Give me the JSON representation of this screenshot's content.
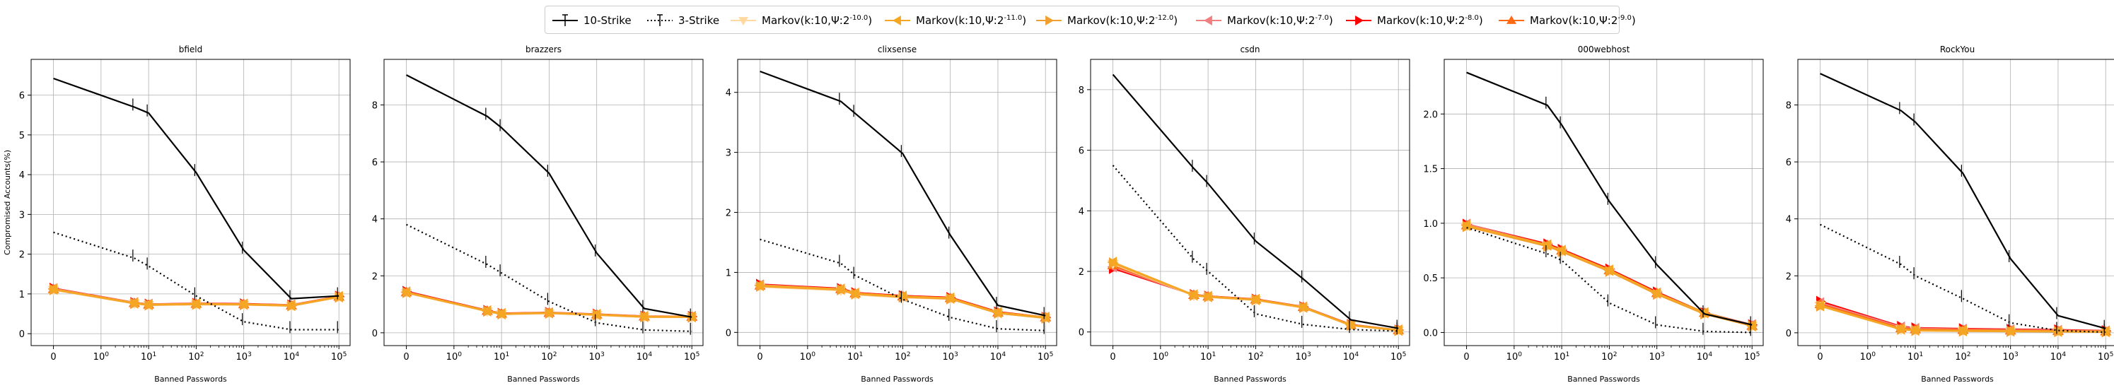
{
  "legend": {
    "items": [
      {
        "label": "10-Strike",
        "color": "#000000",
        "style": "solid",
        "marker": "errbar"
      },
      {
        "label": "3-Strike",
        "color": "#000000",
        "style": "dotted",
        "marker": "errbar"
      },
      {
        "label": "Markov(k:10,Ψ:2^{-10.0})",
        "color": "#ffd9a0",
        "style": "solid",
        "marker": "tri_down"
      },
      {
        "label": "Markov(k:10,Ψ:2^{-11.0})",
        "color": "#f5a623",
        "style": "solid",
        "marker": "tri_left"
      },
      {
        "label": "Markov(k:10,Ψ:2^{-12.0})",
        "color": "#f0a030",
        "style": "solid",
        "marker": "tri_right"
      },
      {
        "label": "Markov(k:10,Ψ:2^{-7.0})",
        "color": "#f08080",
        "style": "solid",
        "marker": "tri_left"
      },
      {
        "label": "Markov(k:10,Ψ:2^{-8.0})",
        "color": "#ff0000",
        "style": "solid",
        "marker": "tri_right"
      },
      {
        "label": "Markov(k:10,Ψ:2^{-9.0})",
        "color": "#ff6a13",
        "style": "solid",
        "marker": "tri_up"
      }
    ]
  },
  "chart_data": [
    {
      "type": "line",
      "title": "bfield",
      "xlabel": "Banned Passwords",
      "ylabel": "Compromised Accounts(%)",
      "x": [
        0,
        5,
        10,
        100,
        1000,
        10000,
        100000
      ],
      "ylim": [
        -0.3,
        6.9
      ],
      "yticks": [
        0,
        1,
        2,
        3,
        4,
        5,
        6
      ],
      "series": [
        {
          "name": "10-Strike",
          "values": [
            6.42,
            5.7,
            5.55,
            4.05,
            2.1,
            0.88,
            0.95
          ]
        },
        {
          "name": "3-Strike",
          "values": [
            2.55,
            1.9,
            1.7,
            0.95,
            0.3,
            0.1,
            0.1
          ]
        },
        {
          "name": "Markov(k:10,Ψ:2^{-10.0})",
          "values": [
            1.1,
            0.76,
            0.72,
            0.73,
            0.73,
            0.7,
            0.92
          ]
        },
        {
          "name": "Markov(k:10,Ψ:2^{-11.0})",
          "values": [
            1.12,
            0.77,
            0.73,
            0.75,
            0.74,
            0.71,
            0.93
          ]
        },
        {
          "name": "Markov(k:10,Ψ:2^{-12.0})",
          "values": [
            1.11,
            0.76,
            0.72,
            0.74,
            0.73,
            0.7,
            0.92
          ]
        },
        {
          "name": "Markov(k:10,Ψ:2^{-7.0})",
          "values": [
            1.13,
            0.78,
            0.74,
            0.75,
            0.74,
            0.72,
            0.93
          ]
        },
        {
          "name": "Markov(k:10,Ψ:2^{-8.0})",
          "values": [
            1.14,
            0.78,
            0.74,
            0.76,
            0.75,
            0.72,
            0.94
          ]
        },
        {
          "name": "Markov(k:10,Ψ:2^{-9.0})",
          "values": [
            1.12,
            0.77,
            0.73,
            0.75,
            0.74,
            0.71,
            0.93
          ]
        }
      ]
    },
    {
      "type": "line",
      "title": "brazzers",
      "xlabel": "Banned Passwords",
      "ylabel": "",
      "x": [
        0,
        5,
        10,
        100,
        1000,
        10000,
        100000
      ],
      "ylim": [
        -0.45,
        9.6
      ],
      "yticks": [
        0,
        2,
        4,
        6,
        8
      ],
      "series": [
        {
          "name": "10-Strike",
          "values": [
            9.05,
            7.6,
            7.2,
            5.6,
            2.8,
            0.85,
            0.55
          ]
        },
        {
          "name": "3-Strike",
          "values": [
            3.8,
            2.4,
            2.1,
            1.1,
            0.35,
            0.1,
            0.05
          ]
        },
        {
          "name": "Markov(k:10,Ψ:2^{-10.0})",
          "values": [
            1.4,
            0.75,
            0.65,
            0.68,
            0.62,
            0.55,
            0.55
          ]
        },
        {
          "name": "Markov(k:10,Ψ:2^{-11.0})",
          "values": [
            1.42,
            0.77,
            0.67,
            0.7,
            0.64,
            0.57,
            0.56
          ]
        },
        {
          "name": "Markov(k:10,Ψ:2^{-12.0})",
          "values": [
            1.41,
            0.76,
            0.66,
            0.69,
            0.63,
            0.56,
            0.55
          ]
        },
        {
          "name": "Markov(k:10,Ψ:2^{-7.0})",
          "values": [
            1.43,
            0.77,
            0.67,
            0.7,
            0.64,
            0.57,
            0.57
          ]
        },
        {
          "name": "Markov(k:10,Ψ:2^{-8.0})",
          "values": [
            1.45,
            0.78,
            0.68,
            0.71,
            0.65,
            0.58,
            0.57
          ]
        },
        {
          "name": "Markov(k:10,Ψ:2^{-9.0})",
          "values": [
            1.42,
            0.77,
            0.67,
            0.7,
            0.64,
            0.57,
            0.56
          ]
        }
      ]
    },
    {
      "type": "line",
      "title": "clixsense",
      "xlabel": "Banned Passwords",
      "ylabel": "",
      "x": [
        0,
        5,
        10,
        100,
        1000,
        10000,
        100000
      ],
      "ylim": [
        -0.22,
        4.55
      ],
      "yticks": [
        0,
        1,
        2,
        3,
        4
      ],
      "series": [
        {
          "name": "10-Strike",
          "values": [
            4.35,
            3.85,
            3.65,
            2.98,
            1.62,
            0.45,
            0.28
          ]
        },
        {
          "name": "3-Strike",
          "values": [
            1.55,
            1.15,
            0.95,
            0.55,
            0.25,
            0.06,
            0.03
          ]
        },
        {
          "name": "Markov(k:10,Ψ:2^{-10.0})",
          "values": [
            0.76,
            0.7,
            0.63,
            0.58,
            0.56,
            0.32,
            0.24
          ]
        },
        {
          "name": "Markov(k:10,Ψ:2^{-11.0})",
          "values": [
            0.78,
            0.72,
            0.65,
            0.6,
            0.57,
            0.33,
            0.25
          ]
        },
        {
          "name": "Markov(k:10,Ψ:2^{-12.0})",
          "values": [
            0.77,
            0.71,
            0.64,
            0.59,
            0.56,
            0.32,
            0.24
          ]
        },
        {
          "name": "Markov(k:10,Ψ:2^{-7.0})",
          "values": [
            0.79,
            0.72,
            0.65,
            0.6,
            0.57,
            0.33,
            0.25
          ]
        },
        {
          "name": "Markov(k:10,Ψ:2^{-8.0})",
          "values": [
            0.8,
            0.73,
            0.66,
            0.61,
            0.58,
            0.34,
            0.25
          ]
        },
        {
          "name": "Markov(k:10,Ψ:2^{-9.0})",
          "values": [
            0.78,
            0.72,
            0.65,
            0.6,
            0.57,
            0.33,
            0.25
          ]
        }
      ]
    },
    {
      "type": "line",
      "title": "csdn",
      "xlabel": "Banned Passwords",
      "ylabel": "",
      "x": [
        0,
        5,
        10,
        100,
        1000,
        10000,
        100000
      ],
      "ylim": [
        -0.45,
        9.0
      ],
      "yticks": [
        0,
        2,
        4,
        6,
        8
      ],
      "series": [
        {
          "name": "10-Strike",
          "values": [
            8.5,
            5.4,
            4.9,
            3.0,
            1.75,
            0.4,
            0.12
          ]
        },
        {
          "name": "3-Strike",
          "values": [
            5.5,
            2.4,
            2.0,
            0.6,
            0.25,
            0.08,
            0.03
          ]
        },
        {
          "name": "Markov(k:10,Ψ:2^{-10.0})",
          "values": [
            2.25,
            1.2,
            1.15,
            1.05,
            0.8,
            0.22,
            0.05
          ]
        },
        {
          "name": "Markov(k:10,Ψ:2^{-11.0})",
          "values": [
            2.3,
            1.22,
            1.17,
            1.07,
            0.82,
            0.23,
            0.06
          ]
        },
        {
          "name": "Markov(k:10,Ψ:2^{-12.0})",
          "values": [
            2.28,
            1.21,
            1.16,
            1.06,
            0.81,
            0.22,
            0.05
          ]
        },
        {
          "name": "Markov(k:10,Ψ:2^{-7.0})",
          "values": [
            2.15,
            1.22,
            1.17,
            1.07,
            0.82,
            0.23,
            0.06
          ]
        },
        {
          "name": "Markov(k:10,Ψ:2^{-8.0})",
          "values": [
            2.1,
            1.23,
            1.18,
            1.08,
            0.83,
            0.24,
            0.06
          ]
        },
        {
          "name": "Markov(k:10,Ψ:2^{-9.0})",
          "values": [
            2.2,
            1.22,
            1.17,
            1.07,
            0.82,
            0.23,
            0.06
          ]
        }
      ]
    },
    {
      "type": "line",
      "title": "000webhost",
      "xlabel": "Banned Passwords",
      "ylabel": "",
      "x": [
        0,
        5,
        10,
        100,
        1000,
        10000,
        100000
      ],
      "ylim": [
        -0.12,
        2.5
      ],
      "yticks": [
        0.0,
        0.5,
        1.0,
        1.5,
        2.0
      ],
      "series": [
        {
          "name": "10-Strike",
          "values": [
            2.38,
            2.08,
            1.9,
            1.2,
            0.62,
            0.17,
            0.07
          ]
        },
        {
          "name": "3-Strike",
          "values": [
            0.96,
            0.72,
            0.66,
            0.27,
            0.07,
            0.01,
            0.0
          ]
        },
        {
          "name": "Markov(k:10,Ψ:2^{-10.0})",
          "values": [
            0.97,
            0.79,
            0.74,
            0.56,
            0.35,
            0.17,
            0.06
          ]
        },
        {
          "name": "Markov(k:10,Ψ:2^{-11.0})",
          "values": [
            0.98,
            0.8,
            0.75,
            0.57,
            0.36,
            0.18,
            0.06
          ]
        },
        {
          "name": "Markov(k:10,Ψ:2^{-12.0})",
          "values": [
            0.97,
            0.79,
            0.74,
            0.56,
            0.35,
            0.17,
            0.06
          ]
        },
        {
          "name": "Markov(k:10,Ψ:2^{-7.0})",
          "values": [
            0.99,
            0.8,
            0.75,
            0.57,
            0.36,
            0.18,
            0.07
          ]
        },
        {
          "name": "Markov(k:10,Ψ:2^{-8.0})",
          "values": [
            0.99,
            0.81,
            0.76,
            0.58,
            0.37,
            0.18,
            0.07
          ]
        },
        {
          "name": "Markov(k:10,Ψ:2^{-9.0})",
          "values": [
            0.98,
            0.8,
            0.75,
            0.57,
            0.36,
            0.18,
            0.06
          ]
        }
      ]
    },
    {
      "type": "line",
      "title": "RockYou",
      "xlabel": "Banned Passwords",
      "ylabel": "",
      "x": [
        0,
        5,
        10,
        100,
        1000,
        10000,
        100000
      ],
      "ylim": [
        -0.45,
        9.6
      ],
      "yticks": [
        0,
        2,
        4,
        6,
        8
      ],
      "series": [
        {
          "name": "10-Strike",
          "values": [
            9.1,
            7.8,
            7.4,
            5.6,
            2.6,
            0.6,
            0.15
          ]
        },
        {
          "name": "3-Strike",
          "values": [
            3.8,
            2.4,
            2.0,
            1.2,
            0.35,
            0.08,
            0.02
          ]
        },
        {
          "name": "Markov(k:10,Ψ:2^{-10.0})",
          "values": [
            0.95,
            0.12,
            0.08,
            0.06,
            0.05,
            0.04,
            0.03
          ]
        },
        {
          "name": "Markov(k:10,Ψ:2^{-11.0})",
          "values": [
            0.95,
            0.13,
            0.09,
            0.07,
            0.06,
            0.05,
            0.04
          ]
        },
        {
          "name": "Markov(k:10,Ψ:2^{-12.0})",
          "values": [
            0.94,
            0.12,
            0.08,
            0.06,
            0.05,
            0.04,
            0.03
          ]
        },
        {
          "name": "Markov(k:10,Ψ:2^{-7.0})",
          "values": [
            1.05,
            0.2,
            0.15,
            0.12,
            0.1,
            0.08,
            0.06
          ]
        },
        {
          "name": "Markov(k:10,Ψ:2^{-8.0})",
          "values": [
            1.1,
            0.22,
            0.17,
            0.14,
            0.12,
            0.1,
            0.07
          ]
        },
        {
          "name": "Markov(k:10,Ψ:2^{-9.0})",
          "values": [
            1.0,
            0.16,
            0.12,
            0.1,
            0.08,
            0.06,
            0.05
          ]
        }
      ]
    }
  ],
  "xticks": [
    "0",
    "10^0",
    "10^1",
    "10^2",
    "10^3",
    "10^4",
    "10^5"
  ],
  "grid": true,
  "legend_placement": "top-center"
}
